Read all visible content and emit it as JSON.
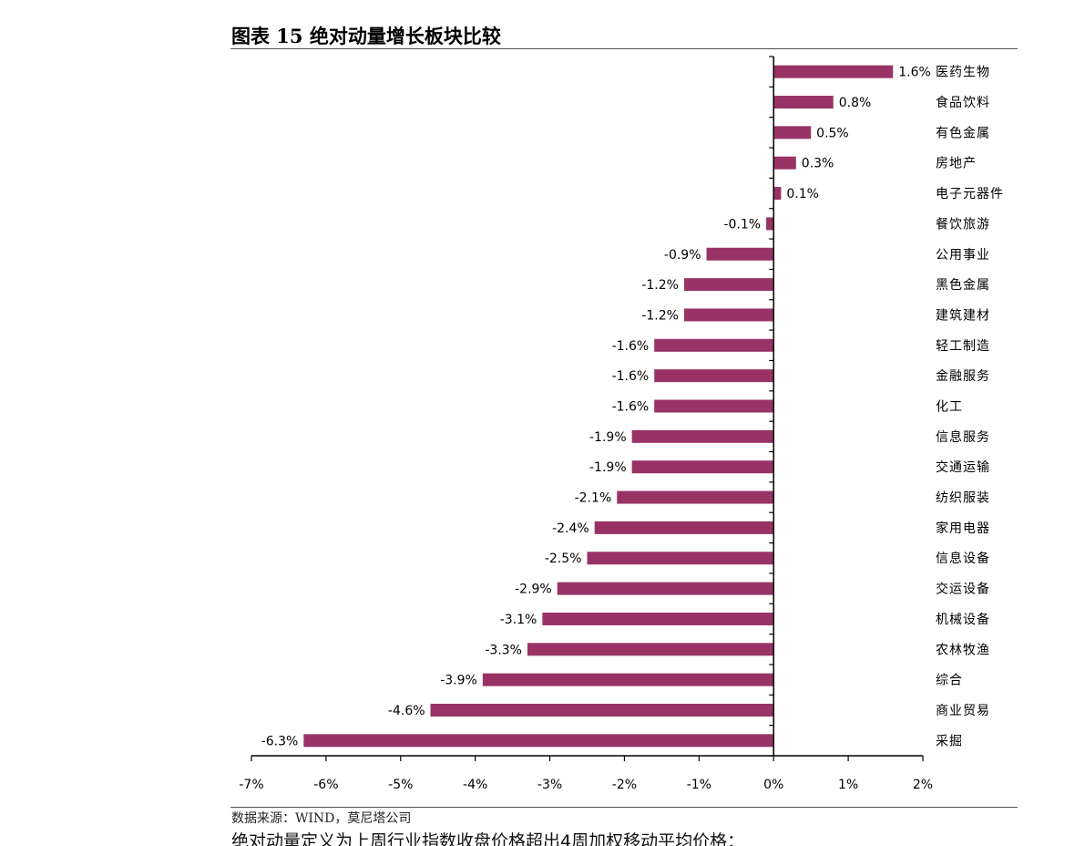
{
  "title": "图表 15 绝对动量增长板块比较",
  "source": "数据来源：WIND，莫尼塔公司",
  "note": "绝对动量定义为上周行业指数收盘价格超出4周加权移动平均价格：",
  "chart_data": {
    "type": "bar",
    "orientation": "horizontal",
    "title": "图表 15 绝对动量增长板块比较",
    "categories": [
      "医药生物",
      "食品饮料",
      "有色金属",
      "房地产",
      "电子元器件",
      "餐饮旅游",
      "公用事业",
      "黑色金属",
      "建筑建材",
      "轻工制造",
      "金融服务",
      "化工",
      "信息服务",
      "交通运输",
      "纺织服装",
      "家用电器",
      "信息设备",
      "交运设备",
      "机械设备",
      "农林牧渔",
      "综合",
      "商业贸易",
      "采掘"
    ],
    "values": [
      1.6,
      0.8,
      0.5,
      0.3,
      0.1,
      -0.1,
      -0.9,
      -1.2,
      -1.2,
      -1.6,
      -1.6,
      -1.6,
      -1.9,
      -1.9,
      -2.1,
      -2.4,
      -2.5,
      -2.9,
      -3.1,
      -3.3,
      -3.9,
      -4.6,
      -6.3
    ],
    "data_labels": [
      "1.6%",
      "0.8%",
      "0.5%",
      "0.3%",
      "0.1%",
      "-0.1%",
      "-0.9%",
      "-1.2%",
      "-1.2%",
      "-1.6%",
      "-1.6%",
      "-1.6%",
      "-1.9%",
      "-1.9%",
      "-2.1%",
      "-2.4%",
      "-2.5%",
      "-2.9%",
      "-3.1%",
      "-3.3%",
      "-3.9%",
      "-4.6%",
      "-6.3%"
    ],
    "xlim": [
      -7,
      2
    ],
    "xticks": [
      -7,
      -6,
      -5,
      -4,
      -3,
      -2,
      -1,
      0,
      1,
      2
    ],
    "xtick_labels": [
      "-7%",
      "-6%",
      "-5%",
      "-4%",
      "-3%",
      "-2%",
      "-1%",
      "0%",
      "1%",
      "2%"
    ],
    "bar_color": "#993366",
    "grid": false,
    "legend": "none"
  }
}
